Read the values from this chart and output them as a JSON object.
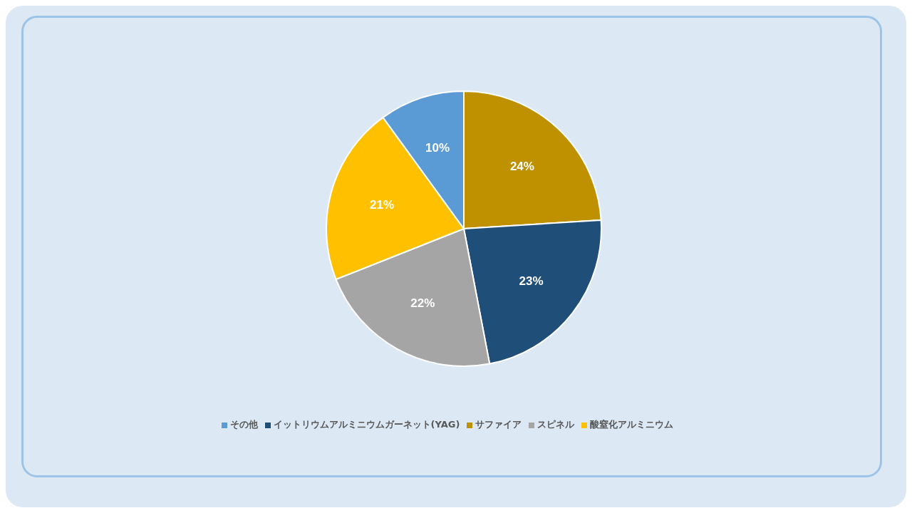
{
  "chart_data": {
    "type": "pie",
    "categories": [
      "サファイア",
      "イットリウムアルミニウムガーネット(YAG)",
      "スピネル",
      "酸窒化アルミニウム",
      "その他"
    ],
    "values": [
      24,
      23,
      22,
      21,
      10
    ],
    "colors": [
      "#bf9000",
      "#1f4e79",
      "#a5a5a5",
      "#ffc000",
      "#5b9bd5"
    ],
    "value_labels": [
      "24%",
      "23%",
      "22%",
      "21%",
      "10%"
    ],
    "legend": "bottom"
  }
}
